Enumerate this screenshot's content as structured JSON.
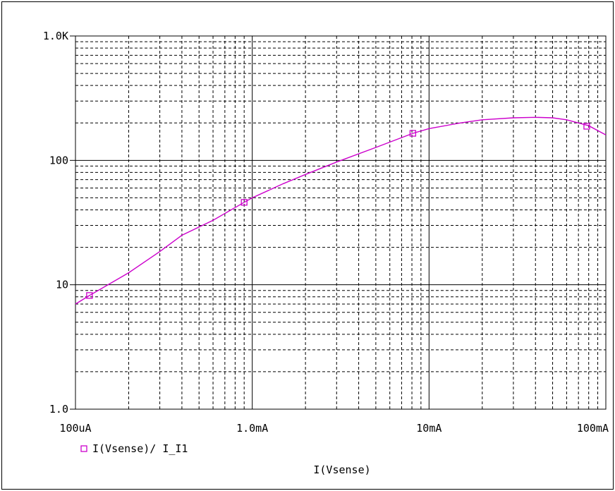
{
  "chart_data": {
    "type": "line",
    "scale": "log-log",
    "grid": true,
    "legend_placement": "bottom-left",
    "xlabel": "I(Vsense)",
    "ylabel": "",
    "title": "",
    "xlim": [
      0.0001,
      0.1
    ],
    "ylim": [
      1,
      1000
    ],
    "x_tick_labels": [
      "100uA",
      "1.0mA",
      "10mA",
      "100mA"
    ],
    "x_tick_values": [
      0.0001,
      0.001,
      0.01,
      0.1
    ],
    "y_tick_labels": [
      "1.0",
      "10",
      "100",
      "1.0K"
    ],
    "y_tick_values": [
      1,
      10,
      100,
      1000
    ],
    "colors": {
      "series": "#cc00cc",
      "grid": "#000000",
      "axis": "#000000"
    },
    "series": [
      {
        "name": "I(Vsense)/ I_I1",
        "marker": "square",
        "x": [
          0.0001,
          0.00012,
          0.0002,
          0.0003,
          0.0004,
          0.0006,
          0.0009,
          0.001,
          0.0015,
          0.002,
          0.003,
          0.005,
          0.0081,
          0.01,
          0.015,
          0.02,
          0.03,
          0.04,
          0.05,
          0.06,
          0.08,
          0.1
        ],
        "y": [
          7,
          8.2,
          12.5,
          18.5,
          25,
          33,
          46,
          50,
          65,
          77,
          97,
          127,
          165,
          180,
          200,
          212,
          220,
          222,
          220,
          212,
          190,
          160
        ],
        "marker_points": [
          [
            0.00012,
            8.2
          ],
          [
            0.0009,
            46
          ],
          [
            0.0081,
            165
          ],
          [
            0.078,
            188
          ]
        ]
      }
    ]
  }
}
